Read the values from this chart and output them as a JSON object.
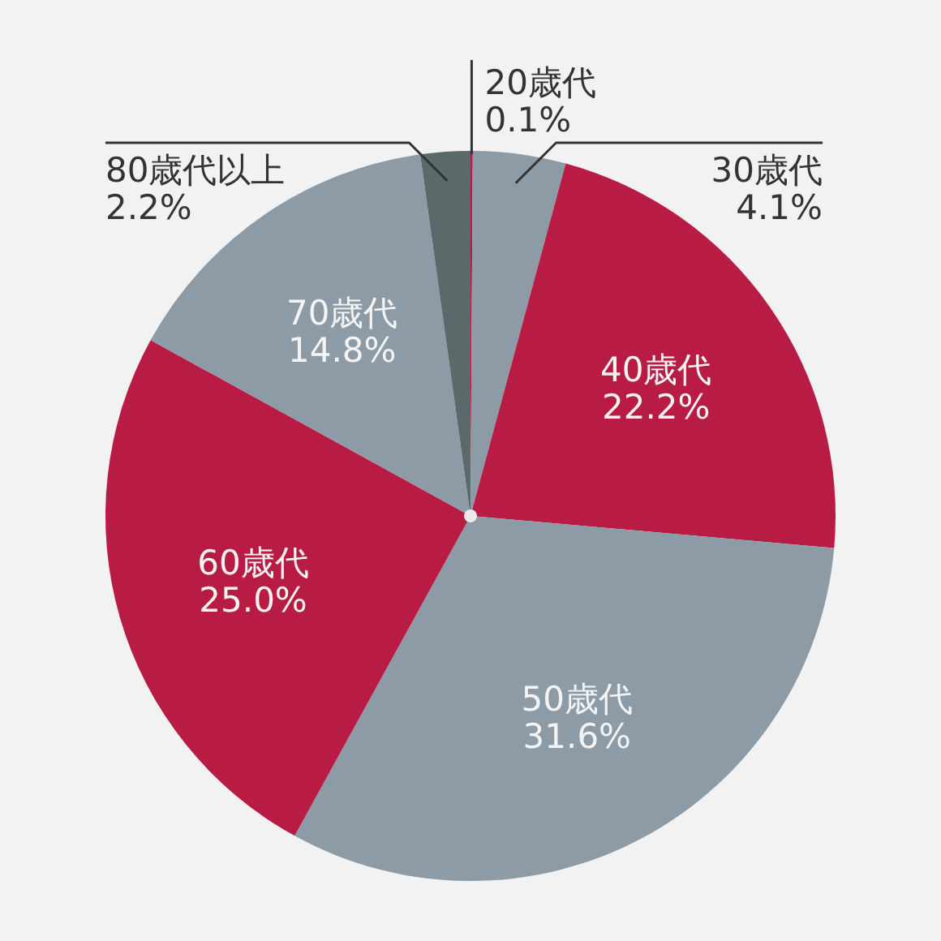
{
  "chart_data": {
    "type": "pie",
    "categories": [
      "20歳代",
      "30歳代",
      "40歳代",
      "50歳代",
      "60歳代",
      "70歳代",
      "80歳代以上"
    ],
    "values": [
      0.1,
      4.1,
      22.2,
      31.6,
      25.0,
      14.8,
      2.2
    ],
    "value_labels": [
      "0.1%",
      "4.1%",
      "22.2%",
      "31.6%",
      "25.0%",
      "14.8%",
      "2.2%"
    ],
    "colors": [
      "#b81c44",
      "#8c9ba6",
      "#b81c44",
      "#8c9ba6",
      "#b81c44",
      "#8c9ba6",
      "#5a6a6a"
    ]
  }
}
